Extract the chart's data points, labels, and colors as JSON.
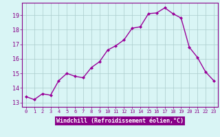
{
  "x": [
    0,
    1,
    2,
    3,
    4,
    5,
    6,
    7,
    8,
    9,
    10,
    11,
    12,
    13,
    14,
    15,
    16,
    17,
    18,
    19,
    20,
    21,
    22,
    23
  ],
  "y": [
    13.4,
    13.2,
    13.6,
    13.5,
    14.5,
    15.0,
    14.8,
    14.7,
    15.4,
    15.8,
    16.6,
    16.9,
    17.3,
    18.1,
    18.2,
    19.1,
    19.15,
    19.5,
    19.1,
    18.8,
    16.8,
    16.1,
    15.1,
    14.5
  ],
  "line_color": "#990099",
  "marker": "D",
  "markersize": 2.0,
  "linewidth": 1.0,
  "bg_color": "#d9f5f5",
  "grid_color": "#aacccc",
  "xlabel": "Windchill (Refroidissement éolien,°C)",
  "xlabel_fontsize": 6.0,
  "ylabel_ticks": [
    13,
    14,
    15,
    16,
    17,
    18,
    19
  ],
  "ytick_fontsize": 6.0,
  "xtick_fontsize": 5.0,
  "xlim": [
    -0.5,
    23.5
  ],
  "ylim": [
    12.7,
    19.85
  ],
  "tick_color": "#880088",
  "spine_color": "#880088",
  "xlabel_bg": "#880088",
  "xlabel_text_color": "#ffffff"
}
